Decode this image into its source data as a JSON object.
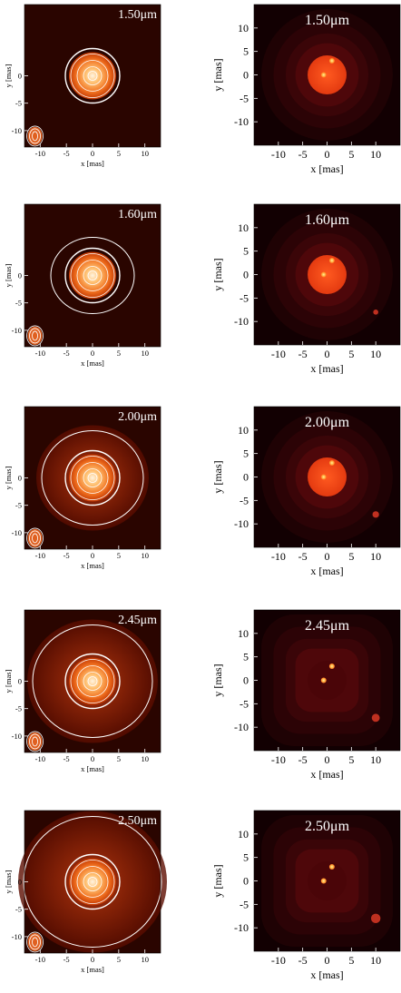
{
  "figure": {
    "left_column": {
      "xlabel": "x [mas]",
      "ylabel": "y [mas]",
      "xticks": [
        "-10",
        "-5",
        "0",
        "5",
        "10"
      ],
      "yticks": [
        "0",
        "-5",
        "-10"
      ],
      "xtick_values": [
        -10,
        -5,
        0,
        5,
        10
      ],
      "ytick_values": [
        0,
        -5,
        -10
      ],
      "xlim": [
        -13,
        13
      ],
      "ylim": [
        -13,
        13
      ]
    },
    "right_column": {
      "xlabel": "x [mas]",
      "ylabel": "y [mas]",
      "xticks": [
        "-10",
        "-5",
        "0",
        "5",
        "10"
      ],
      "yticks": [
        "10",
        "5",
        "0",
        "-5",
        "-10"
      ],
      "xtick_values": [
        -10,
        -5,
        0,
        5,
        10
      ],
      "ytick_values": [
        10,
        5,
        0,
        -5,
        -10
      ],
      "xlim": [
        -15,
        15
      ],
      "ylim": [
        -15,
        15
      ]
    },
    "panels": [
      {
        "wavelength": "1.50μm"
      },
      {
        "wavelength": "1.60μm"
      },
      {
        "wavelength": "2.00μm"
      },
      {
        "wavelength": "2.45μm"
      },
      {
        "wavelength": "2.50μm"
      }
    ],
    "colors": {
      "obs_background": "#2a0500",
      "contour": "#ffffff",
      "model_background": "#120002"
    }
  }
}
